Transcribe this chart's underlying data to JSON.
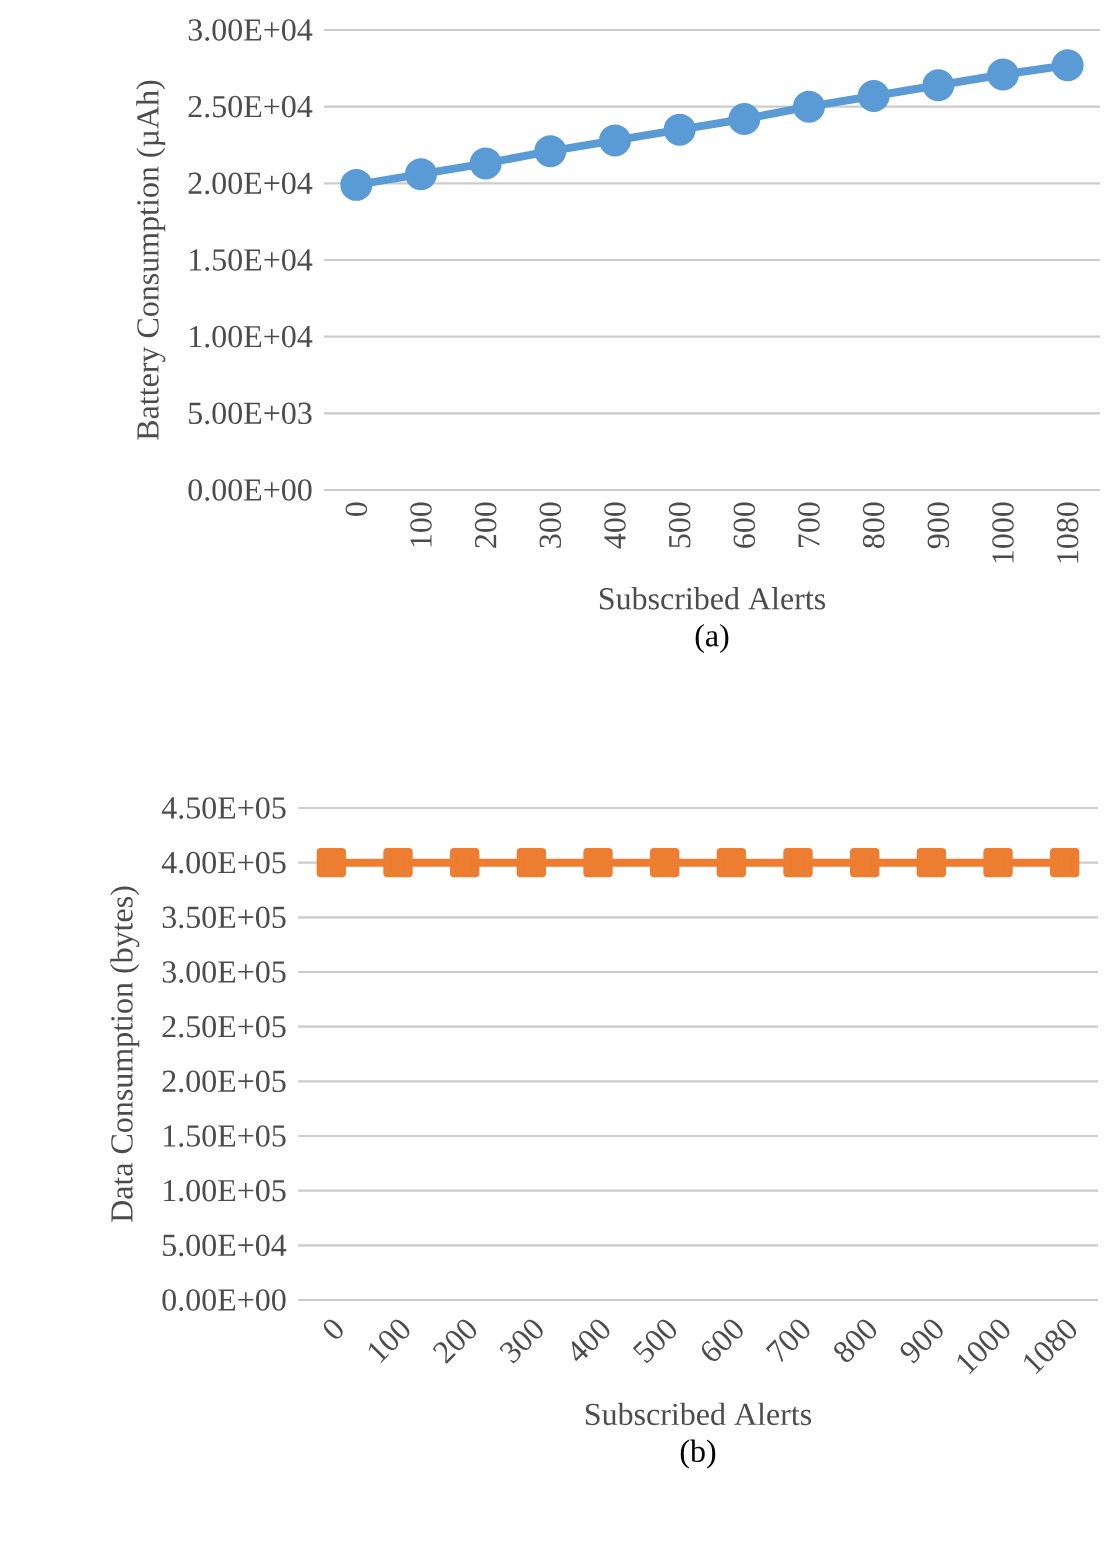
{
  "chart_data": [
    {
      "type": "line",
      "xlabel": "Subscribed Alerts",
      "ylabel": "Battery Consumption (µAh)",
      "categories": [
        "0",
        "100",
        "200",
        "300",
        "400",
        "500",
        "600",
        "700",
        "800",
        "900",
        "1000",
        "1080"
      ],
      "series": [
        {
          "color": "#5b9bd5",
          "values": [
            19900,
            20600,
            21300,
            22100,
            22800,
            23500,
            24200,
            25000,
            25700,
            26400,
            27100,
            27700
          ]
        }
      ],
      "ylim": [
        0,
        30000
      ],
      "yticks": [
        {
          "value": 0,
          "label": "0.00E+00"
        },
        {
          "value": 5000,
          "label": "5.00E+03"
        },
        {
          "value": 10000,
          "label": "1.00E+04"
        },
        {
          "value": 15000,
          "label": "1.50E+04"
        },
        {
          "value": 20000,
          "label": "2.00E+04"
        },
        {
          "value": 25000,
          "label": "2.50E+04"
        },
        {
          "value": 30000,
          "label": "3.00E+04"
        }
      ],
      "grid": "y",
      "marker": "circle",
      "line_style": "solid",
      "annotations": [
        "(a)"
      ]
    },
    {
      "type": "line",
      "xlabel": "Subscribed Alerts",
      "ylabel": "Data Consumption (bytes)",
      "categories": [
        "0",
        "100",
        "200",
        "300",
        "400",
        "500",
        "600",
        "700",
        "800",
        "900",
        "1000",
        "1080"
      ],
      "series": [
        {
          "color": "#ed7d31",
          "values": [
            400000,
            400000,
            400000,
            400000,
            400000,
            400000,
            400000,
            400000,
            400000,
            400000,
            400000,
            400000
          ]
        }
      ],
      "ylim": [
        0,
        450000
      ],
      "yticks": [
        {
          "value": 0,
          "label": "0.00E+00"
        },
        {
          "value": 50000,
          "label": "5.00E+04"
        },
        {
          "value": 100000,
          "label": "1.00E+05"
        },
        {
          "value": 150000,
          "label": "1.50E+05"
        },
        {
          "value": 200000,
          "label": "2.00E+05"
        },
        {
          "value": 250000,
          "label": "2.50E+05"
        },
        {
          "value": 300000,
          "label": "3.00E+05"
        },
        {
          "value": 350000,
          "label": "3.50E+05"
        },
        {
          "value": 400000,
          "label": "4.00E+05"
        },
        {
          "value": 450000,
          "label": "4.50E+05"
        }
      ],
      "grid": "y",
      "marker": "square",
      "line_style": "solid",
      "annotations": [
        "(b)"
      ]
    }
  ]
}
